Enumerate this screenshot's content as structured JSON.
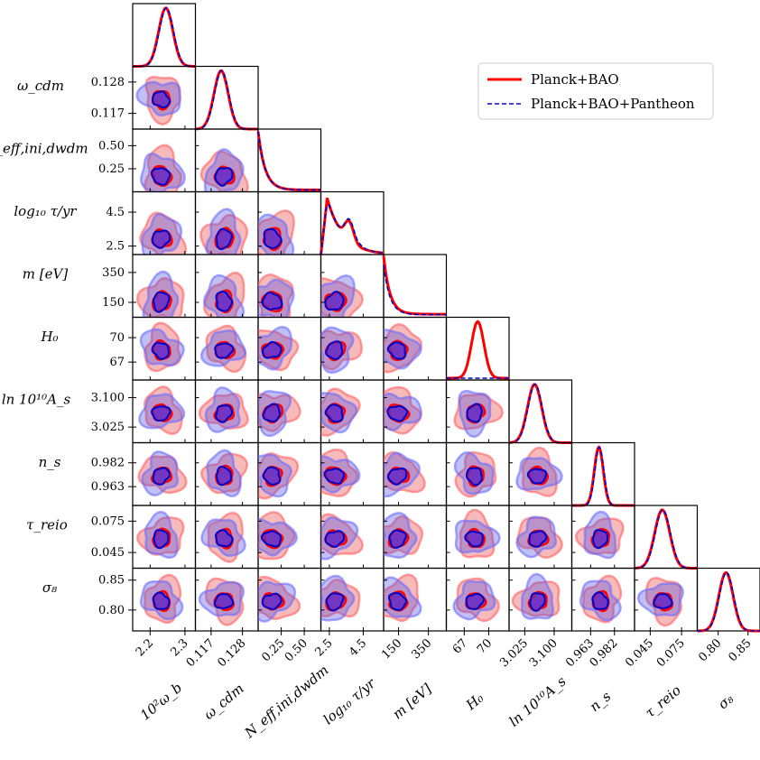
{
  "chart_data": {
    "type": "corner-plot",
    "parameters": [
      {
        "key": "omega_b",
        "label": "10²ω_b",
        "ticks": [
          2.2,
          2.3
        ],
        "range": [
          2.15,
          2.33
        ],
        "peak": 2.245,
        "hasRowLabel": false
      },
      {
        "key": "omega_cdm",
        "label": "ω_cdm",
        "ticks": [
          0.117,
          0.128
        ],
        "range": [
          0.1115,
          0.1335
        ],
        "peak": 0.1205
      },
      {
        "key": "neff",
        "label": "N_eff,ini,dwdm",
        "ticks": [
          0.25,
          0.5
        ],
        "range": [
          0.0,
          0.68
        ],
        "peak": 0.0
      },
      {
        "key": "log_tau",
        "label": "log₁₀ τ/yr",
        "ticks": [
          2.5,
          4.5
        ],
        "range": [
          2.0,
          5.7
        ],
        "peak": 2.3
      },
      {
        "key": "m",
        "label": "m [eV]",
        "ticks": [
          150,
          350
        ],
        "range": [
          50,
          470
        ],
        "peak": 50
      },
      {
        "key": "H0",
        "label": "H₀",
        "ticks": [
          67,
          70
        ],
        "range": [
          64.8,
          72.5
        ],
        "peak": 68.3
      },
      {
        "key": "lnAs",
        "label": "ln 10¹⁰A_s",
        "ticks": [
          3.025,
          3.1
        ],
        "range": [
          2.985,
          3.145
        ],
        "peak": 3.05
      },
      {
        "key": "ns",
        "label": "n_s",
        "ticks": [
          0.963,
          0.982
        ],
        "range": [
          0.948,
          0.998
        ],
        "peak": 0.9695
      },
      {
        "key": "tau_reio",
        "label": "τ_reio",
        "ticks": [
          0.045,
          0.075
        ],
        "range": [
          0.03,
          0.09
        ],
        "peak": 0.0565
      },
      {
        "key": "sigma8",
        "label": "σ₈",
        "ticks": [
          0.8,
          0.85
        ],
        "range": [
          0.765,
          0.87
        ],
        "peak": 0.813
      }
    ],
    "tick_text": {
      "omega_b": [
        "2.2",
        "2.3"
      ],
      "omega_cdm": [
        "0.117",
        "0.128"
      ],
      "neff": [
        "0.25",
        "0.50"
      ],
      "log_tau": [
        "2.5",
        "4.5"
      ],
      "m": [
        "150",
        "350"
      ],
      "H0": [
        "67",
        "70"
      ],
      "lnAs": [
        "3.025",
        "3.100"
      ],
      "ns": [
        "0.963",
        "0.982"
      ],
      "tau_reio": [
        "0.045",
        "0.075"
      ],
      "sigma8": [
        "0.80",
        "0.85"
      ]
    },
    "row_tick_text": {
      "lnAs": [
        "3.100",
        "3.025"
      ]
    },
    "series": [
      {
        "name": "Planck+BAO",
        "color": "#ff0000",
        "style": "solid",
        "fill": "#e8383d"
      },
      {
        "name": "Planck+BAO+Pantheon",
        "color": "#0000cc",
        "style": "dashed",
        "fill": "#4a4ae6"
      }
    ],
    "legend_position": "top-right"
  },
  "colors": {
    "red": "#ff0000",
    "blue": "#0000cc",
    "purple_fill": "#8a4fc8"
  }
}
